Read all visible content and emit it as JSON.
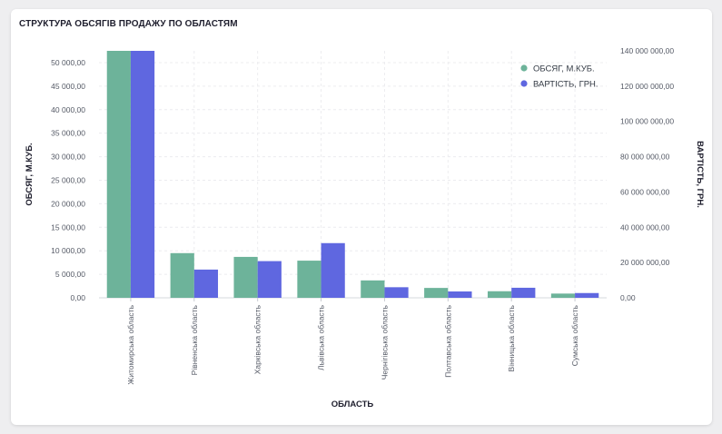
{
  "card": {
    "title": "СТРУКТУРА ОБСЯГІВ ПРОДАЖУ ПО ОБЛАСТЯМ"
  },
  "chart_data": {
    "type": "bar",
    "title": "СТРУКТУРА ОБСЯГІВ ПРОДАЖУ ПО ОБЛАСТЯМ",
    "xlabel": "ОБЛАСТЬ",
    "ylabel_left": "ОБСЯГ, М.КУБ.",
    "ylabel_right": "ВАРТІСТЬ, ГРН.",
    "categories": [
      "Житомирська область",
      "Рівненська область",
      "Харківська область",
      "Львівська область",
      "Чернігівська область",
      "Полтавська область",
      "Вінницька область",
      "Сумська область"
    ],
    "series": [
      {
        "name": "ОБСЯГ, М.КУБ.",
        "axis": "left",
        "color": "#6db39a",
        "values": [
          54000,
          9500,
          8700,
          7900,
          3700,
          2100,
          1400,
          900
        ]
      },
      {
        "name": "ВАРТІСТЬ, ГРН.",
        "axis": "right",
        "color": "#5f67e0",
        "values": [
          145000000,
          16000000,
          20800000,
          31000000,
          6000000,
          3600000,
          5700000,
          2700000
        ]
      }
    ],
    "ylim_left": [
      0,
      52500
    ],
    "yticks_left": [
      "0,00",
      "5 000,00",
      "10 000,00",
      "15 000,00",
      "20 000,00",
      "25 000,00",
      "30 000,00",
      "35 000,00",
      "40 000,00",
      "45 000,00",
      "50 000,00"
    ],
    "ylim_right": [
      0,
      140000000
    ],
    "yticks_right": [
      "0,00",
      "20 000 000,00",
      "40 000 000,00",
      "60 000 000,00",
      "80 000 000,00",
      "100 000 000,00",
      "120 000 000,00",
      "140 000 000,00"
    ],
    "grid": true,
    "legend_position": "top-right"
  }
}
